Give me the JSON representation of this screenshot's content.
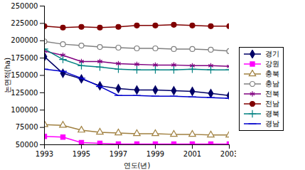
{
  "chart_data": {
    "type": "line",
    "x_label": "연도(년)",
    "y_label": "논면적(ha)",
    "x": [
      1993,
      1994,
      1995,
      1996,
      1997,
      1998,
      1999,
      2000,
      2001,
      2002,
      2003
    ],
    "xlim": [
      1993,
      2003
    ],
    "xticks": [
      1993,
      1995,
      1997,
      1999,
      2001,
      2003
    ],
    "ylim": [
      50000,
      250000
    ],
    "yticks": [
      50000,
      75000,
      100000,
      125000,
      150000,
      175000,
      200000,
      225000,
      250000
    ],
    "grid": false,
    "legend": "right",
    "series": [
      {
        "name": "경기",
        "color": "#000066",
        "marker": "diamond",
        "values": [
          177000,
          153000,
          145000,
          135000,
          131000,
          129000,
          129000,
          128000,
          127000,
          124000,
          121000
        ]
      },
      {
        "name": "강원",
        "color": "#ff00ff",
        "marker": "square",
        "values": [
          62000,
          61000,
          53000,
          52000,
          51000,
          51000,
          51000,
          51000,
          51000,
          51000,
          51000
        ]
      },
      {
        "name": "충북",
        "color": "#a08040",
        "marker": "triangle-open",
        "values": [
          79000,
          78000,
          71000,
          68000,
          67000,
          66000,
          66000,
          65000,
          65000,
          64000,
          64000
        ]
      },
      {
        "name": "충남",
        "color": "#808080",
        "marker": "circle-open",
        "values": [
          199000,
          195000,
          193000,
          191000,
          190000,
          189000,
          189000,
          188000,
          188000,
          187000,
          185000
        ]
      },
      {
        "name": "전북",
        "color": "#800080",
        "marker": "asterisk",
        "values": [
          185000,
          179000,
          170000,
          170000,
          167000,
          166000,
          165000,
          165000,
          164000,
          164000,
          163000
        ]
      },
      {
        "name": "전남",
        "color": "#800000",
        "marker": "circle",
        "values": [
          221000,
          219000,
          220000,
          219000,
          220000,
          222000,
          222000,
          223000,
          222000,
          221000,
          221000
        ]
      },
      {
        "name": "경북",
        "color": "#008080",
        "marker": "plus",
        "values": [
          188000,
          173000,
          164000,
          162000,
          159000,
          158000,
          158000,
          158000,
          159000,
          158000,
          158000
        ]
      },
      {
        "name": "경남",
        "color": "#0000cc",
        "marker": "dash",
        "values": [
          159000,
          156000,
          146000,
          134000,
          121000,
          121000,
          120000,
          120000,
          119000,
          118000,
          117000
        ]
      }
    ]
  }
}
